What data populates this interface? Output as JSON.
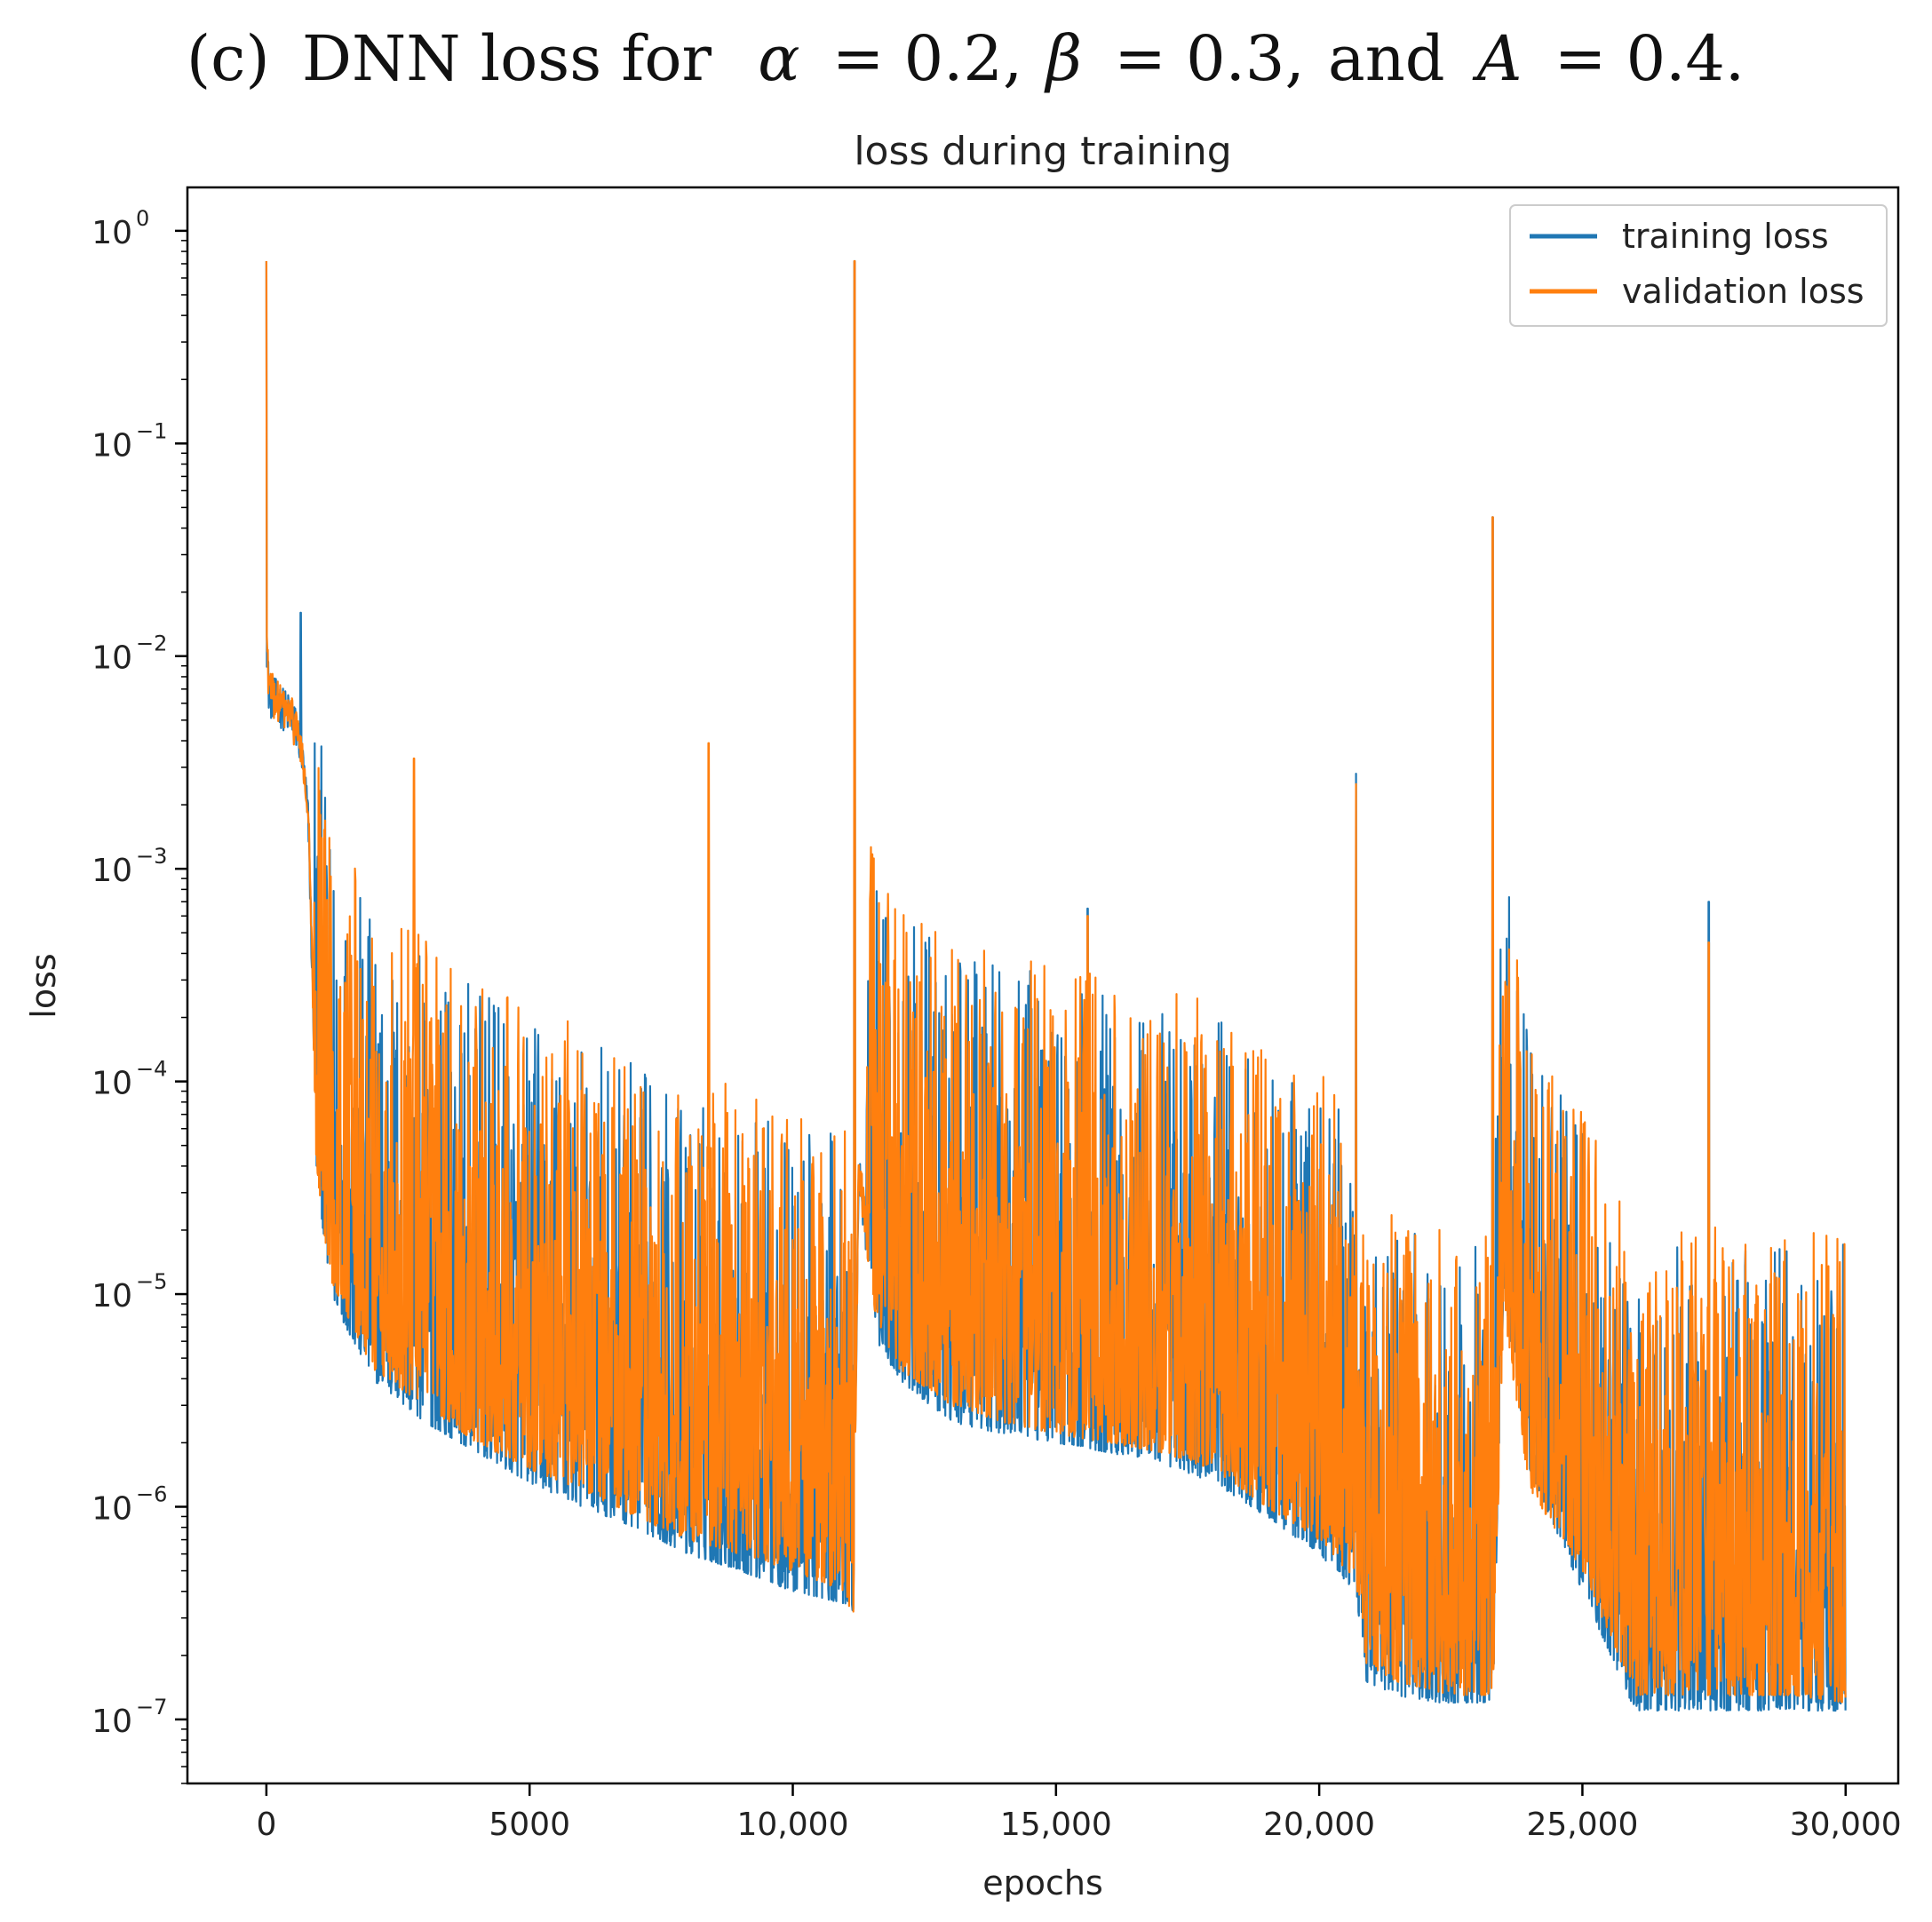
{
  "caption": {
    "label": "(c)",
    "text": "DNN loss for",
    "alpha_symbol": "α",
    "alpha_value": "= 0.2,",
    "beta_symbol": "β",
    "beta_value": "= 0.3,",
    "and_text": "and",
    "a_symbol": "A",
    "a_value": "= 0.4."
  },
  "colors": {
    "training": "#1f77b4",
    "validation": "#ff7f0e",
    "axes": "#000000"
  },
  "chart_data": {
    "type": "line",
    "title": "loss during training",
    "xlabel": "epochs",
    "ylabel": "loss",
    "yscale": "log",
    "xlim": [
      -1500,
      31000
    ],
    "ylim": [
      5e-08,
      1.6
    ],
    "x_ticks": [
      {
        "value": 0,
        "label": "0"
      },
      {
        "value": 5000,
        "label": "5000"
      },
      {
        "value": 10000,
        "label": "10,000"
      },
      {
        "value": 15000,
        "label": "15,000"
      },
      {
        "value": 20000,
        "label": "20,000"
      },
      {
        "value": 25000,
        "label": "25,000"
      },
      {
        "value": 30000,
        "label": "30,000"
      }
    ],
    "y_ticks": [
      {
        "value": 1,
        "base": "10",
        "exp": "0"
      },
      {
        "value": 0.1,
        "base": "10",
        "exp": "−1"
      },
      {
        "value": 0.01,
        "base": "10",
        "exp": "−2"
      },
      {
        "value": 0.001,
        "base": "10",
        "exp": "−3"
      },
      {
        "value": 0.0001,
        "base": "10",
        "exp": "−4"
      },
      {
        "value": 1e-05,
        "base": "10",
        "exp": "−5"
      },
      {
        "value": 1e-06,
        "base": "10",
        "exp": "−6"
      },
      {
        "value": 1e-07,
        "base": "10",
        "exp": "−7"
      }
    ],
    "legend": {
      "position": "top-right",
      "entries": [
        "training loss",
        "validation loss"
      ]
    },
    "series": [
      {
        "name": "training loss",
        "color": "#1f77b4",
        "epochs": [
          0,
          50,
          150,
          300,
          500,
          650,
          800,
          950,
          1200,
          2000,
          3000,
          4000,
          5000,
          6000,
          7000,
          8000,
          9000,
          10000,
          11000,
          11150,
          11250,
          11600,
          12000,
          13000,
          14000,
          15000,
          16000,
          17000,
          18000,
          19000,
          20000,
          20700,
          20900,
          21500,
          22000,
          22500,
          23000,
          23300,
          23500,
          24000,
          25000,
          26000,
          27000,
          28000,
          29000,
          30000
        ],
        "floor": [
          0.01,
          0.005,
          0.005,
          0.0045,
          0.004,
          0.003,
          0.0013,
          4e-05,
          1e-05,
          4e-06,
          2.5e-06,
          1.8e-06,
          1.3e-06,
          1e-06,
          8e-07,
          6e-07,
          5e-07,
          4e-07,
          3.5e-07,
          3e-07,
          3e-05,
          6e-06,
          4e-06,
          2.5e-06,
          2.2e-06,
          2e-06,
          1.8e-06,
          1.6e-06,
          1.3e-06,
          9e-07,
          6e-07,
          4e-07,
          1.5e-07,
          1.3e-07,
          1.2e-07,
          1.2e-07,
          1.2e-07,
          1.2e-07,
          1e-05,
          1.5e-06,
          4e-07,
          1.1e-07,
          1.1e-07,
          1.1e-07,
          1.1e-07,
          1.1e-07
        ],
        "peaks": [
          {
            "epoch": 0,
            "value": 0.72
          },
          {
            "epoch": 650,
            "value": 0.016
          },
          {
            "epoch": 11170,
            "value": 0.72
          },
          {
            "epoch": 15600,
            "value": 0.00065
          },
          {
            "epoch": 20700,
            "value": 0.0028
          },
          {
            "epoch": 23300,
            "value": 0.045
          },
          {
            "epoch": 27400,
            "value": 0.0007
          }
        ]
      },
      {
        "name": "validation loss",
        "color": "#ff7f0e",
        "epochs": [
          0,
          50,
          150,
          300,
          500,
          650,
          800,
          950,
          1200,
          2000,
          3000,
          4000,
          5000,
          6000,
          7000,
          8000,
          9000,
          10000,
          11000,
          11150,
          11250,
          11600,
          12000,
          13000,
          14000,
          15000,
          16000,
          17000,
          18000,
          19000,
          20000,
          20700,
          20900,
          21500,
          22000,
          22500,
          23000,
          23300,
          23500,
          24000,
          25000,
          26000,
          27000,
          28000,
          29000,
          30000
        ],
        "floor": [
          0.01,
          0.0055,
          0.005,
          0.0045,
          0.004,
          0.003,
          0.0013,
          4e-05,
          1.2e-05,
          4.5e-06,
          3e-06,
          2e-06,
          1.5e-06,
          1.2e-06,
          9e-07,
          7e-07,
          6e-07,
          5e-07,
          4e-07,
          2.8e-07,
          3e-05,
          7e-06,
          4.5e-06,
          3e-06,
          2.5e-06,
          2.2e-06,
          2e-06,
          1.8e-06,
          1.5e-06,
          1e-06,
          7e-07,
          4.5e-07,
          1.8e-07,
          1.5e-07,
          1.4e-07,
          1.3e-07,
          1.3e-07,
          1.3e-07,
          8e-06,
          1.2e-06,
          5e-07,
          1.3e-07,
          1.3e-07,
          1.3e-07,
          1.3e-07,
          1.2e-07
        ],
        "peaks": [
          {
            "epoch": 0,
            "value": 0.72
          },
          {
            "epoch": 2800,
            "value": 0.0033
          },
          {
            "epoch": 8400,
            "value": 0.0039
          },
          {
            "epoch": 11170,
            "value": 0.72
          },
          {
            "epoch": 15600,
            "value": 0.0006
          },
          {
            "epoch": 20700,
            "value": 0.0025
          },
          {
            "epoch": 23300,
            "value": 0.045
          },
          {
            "epoch": 27400,
            "value": 0.00045
          }
        ]
      }
    ]
  }
}
